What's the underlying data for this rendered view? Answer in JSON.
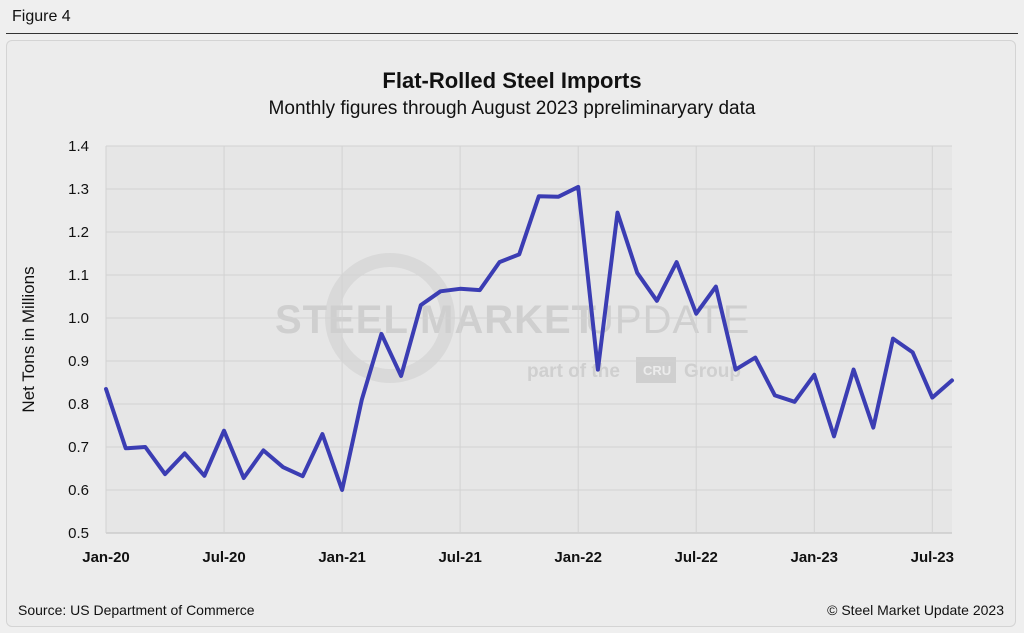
{
  "figure_label": "Figure 4",
  "source": "Source: US Department of Commerce",
  "copyright": "© Steel Market Update 2023",
  "watermark": {
    "brand": "STEELMARKETUPDATE",
    "brand_part1": "STEEL",
    "brand_part2": "MARKET",
    "brand_part3": "UPDATE",
    "tagline_pre": "part of the",
    "tagline_box": "CRU",
    "tagline_post": "Group"
  },
  "chart_data": {
    "type": "line",
    "title": "Flat-Rolled Steel Imports",
    "subtitle": "Monthly figures through August 2023 ppreliminaryary data",
    "xlabel": "",
    "ylabel": "Net Tons in Millions",
    "ylim": [
      0.5,
      1.4
    ],
    "yticks": [
      "0.5",
      "0.6",
      "0.7",
      "0.8",
      "0.9",
      "1.0",
      "1.1",
      "1.2",
      "1.3",
      "1.4"
    ],
    "xtick_labels": [
      {
        "label": "Jan-20",
        "index": 0
      },
      {
        "label": "Jul-20",
        "index": 6
      },
      {
        "label": "Jan-21",
        "index": 12
      },
      {
        "label": "Jul-21",
        "index": 18
      },
      {
        "label": "Jan-22",
        "index": 24
      },
      {
        "label": "Jul-22",
        "index": 30
      },
      {
        "label": "Jan-23",
        "index": 36
      },
      {
        "label": "Jul-23",
        "index": 42
      }
    ],
    "grid": true,
    "line_color": "#3b3db3",
    "series": [
      {
        "name": "Flat-Rolled Steel Imports",
        "values": [
          0.835,
          0.697,
          0.7,
          0.637,
          0.685,
          0.633,
          0.738,
          0.628,
          0.692,
          0.653,
          0.632,
          0.73,
          0.6,
          0.81,
          0.963,
          0.865,
          1.03,
          1.062,
          1.068,
          1.065,
          1.13,
          1.148,
          1.283,
          1.282,
          1.305,
          0.88,
          1.245,
          1.105,
          1.04,
          1.13,
          1.01,
          1.073,
          0.88,
          0.908,
          0.82,
          0.805,
          0.868,
          0.725,
          0.88,
          0.745,
          0.952,
          0.92,
          0.815,
          0.855
        ]
      }
    ]
  }
}
